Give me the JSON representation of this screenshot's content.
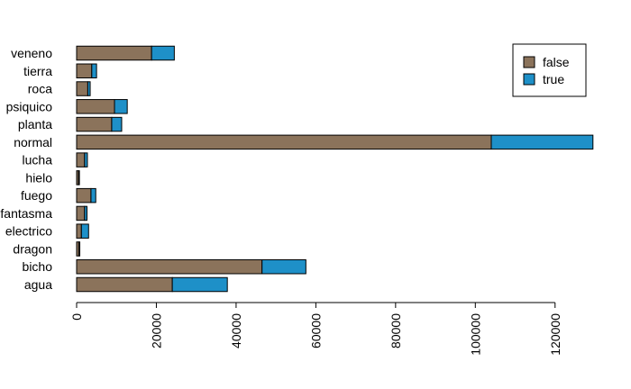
{
  "chart_data": {
    "type": "bar",
    "orientation": "horizontal",
    "stacked": true,
    "categories": [
      "agua",
      "bicho",
      "dragon",
      "electrico",
      "fantasma",
      "fuego",
      "hielo",
      "lucha",
      "normal",
      "planta",
      "psiquico",
      "roca",
      "tierra",
      "veneno"
    ],
    "series": [
      {
        "name": "false",
        "color": "#8B735B",
        "values": [
          24000,
          46500,
          600,
          1200,
          2000,
          3600,
          500,
          2000,
          104000,
          8800,
          9500,
          2800,
          3800,
          18800
        ]
      },
      {
        "name": "true",
        "color": "#1E90C8",
        "values": [
          13800,
          11000,
          200,
          1800,
          600,
          1200,
          200,
          700,
          25500,
          2500,
          3200,
          600,
          1200,
          5700
        ]
      }
    ],
    "x_ticks": [
      "0",
      "20000",
      "40000",
      "60000",
      "80000",
      "100000",
      "120000"
    ],
    "xlim": [
      0,
      130000
    ],
    "legend": {
      "position": "top-right",
      "entries": [
        "false",
        "true"
      ]
    },
    "title": "",
    "xlabel": "",
    "ylabel": "",
    "grid": false
  }
}
